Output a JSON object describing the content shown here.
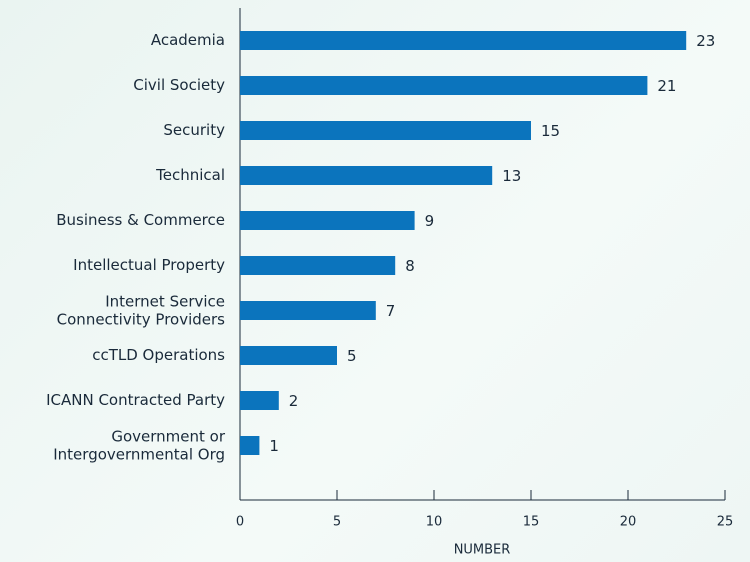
{
  "chart_data": {
    "type": "bar",
    "orientation": "horizontal",
    "x_label": "NUMBER",
    "categories": [
      "Academia",
      "Civil Society",
      "Security",
      "Technical",
      "Business & Commerce",
      "Intellectual Property",
      "Internet Service\nConnectivity Providers",
      "ccTLD Operations",
      "ICANN Contracted Party",
      "Government or\nIntergovernmental Org"
    ],
    "values": [
      23,
      21,
      15,
      13,
      9,
      8,
      7,
      5,
      2,
      1
    ],
    "color": "#0b74bd",
    "xlim": [
      0,
      25
    ],
    "xticks": [
      0,
      5,
      10,
      15,
      20,
      25
    ],
    "grid": false
  }
}
